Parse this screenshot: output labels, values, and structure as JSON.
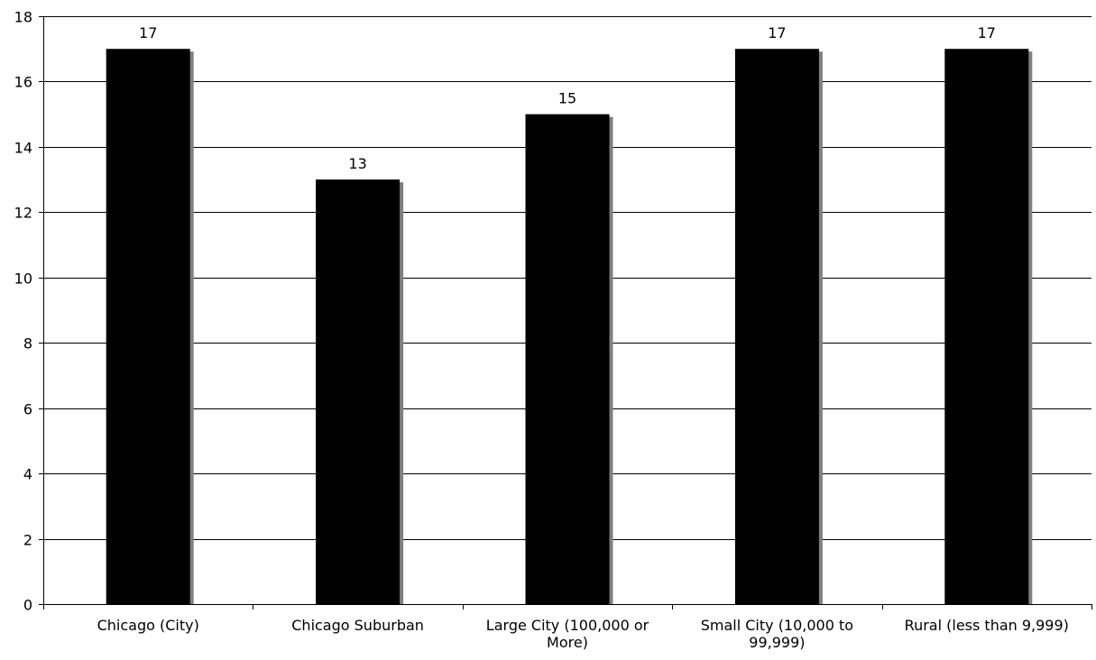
{
  "chart_data": {
    "type": "bar",
    "categories": [
      [
        "Chicago (City)"
      ],
      [
        "Chicago Suburban"
      ],
      [
        "Large City (100,000 or",
        "More)"
      ],
      [
        "Small City (10,000 to",
        "99,999)"
      ],
      [
        "Rural (less than 9,999)"
      ]
    ],
    "values": [
      17,
      13,
      15,
      17,
      17
    ],
    "data_labels": [
      "17",
      "13",
      "15",
      "17",
      "17"
    ],
    "y_ticks": [
      "0",
      "2",
      "4",
      "6",
      "8",
      "10",
      "12",
      "14",
      "16",
      "18"
    ],
    "ylim": [
      0,
      18
    ],
    "grid": true,
    "legend": "none",
    "colors": {
      "bar": "#000000",
      "shadow": "#808080",
      "grid": "#000000"
    }
  }
}
